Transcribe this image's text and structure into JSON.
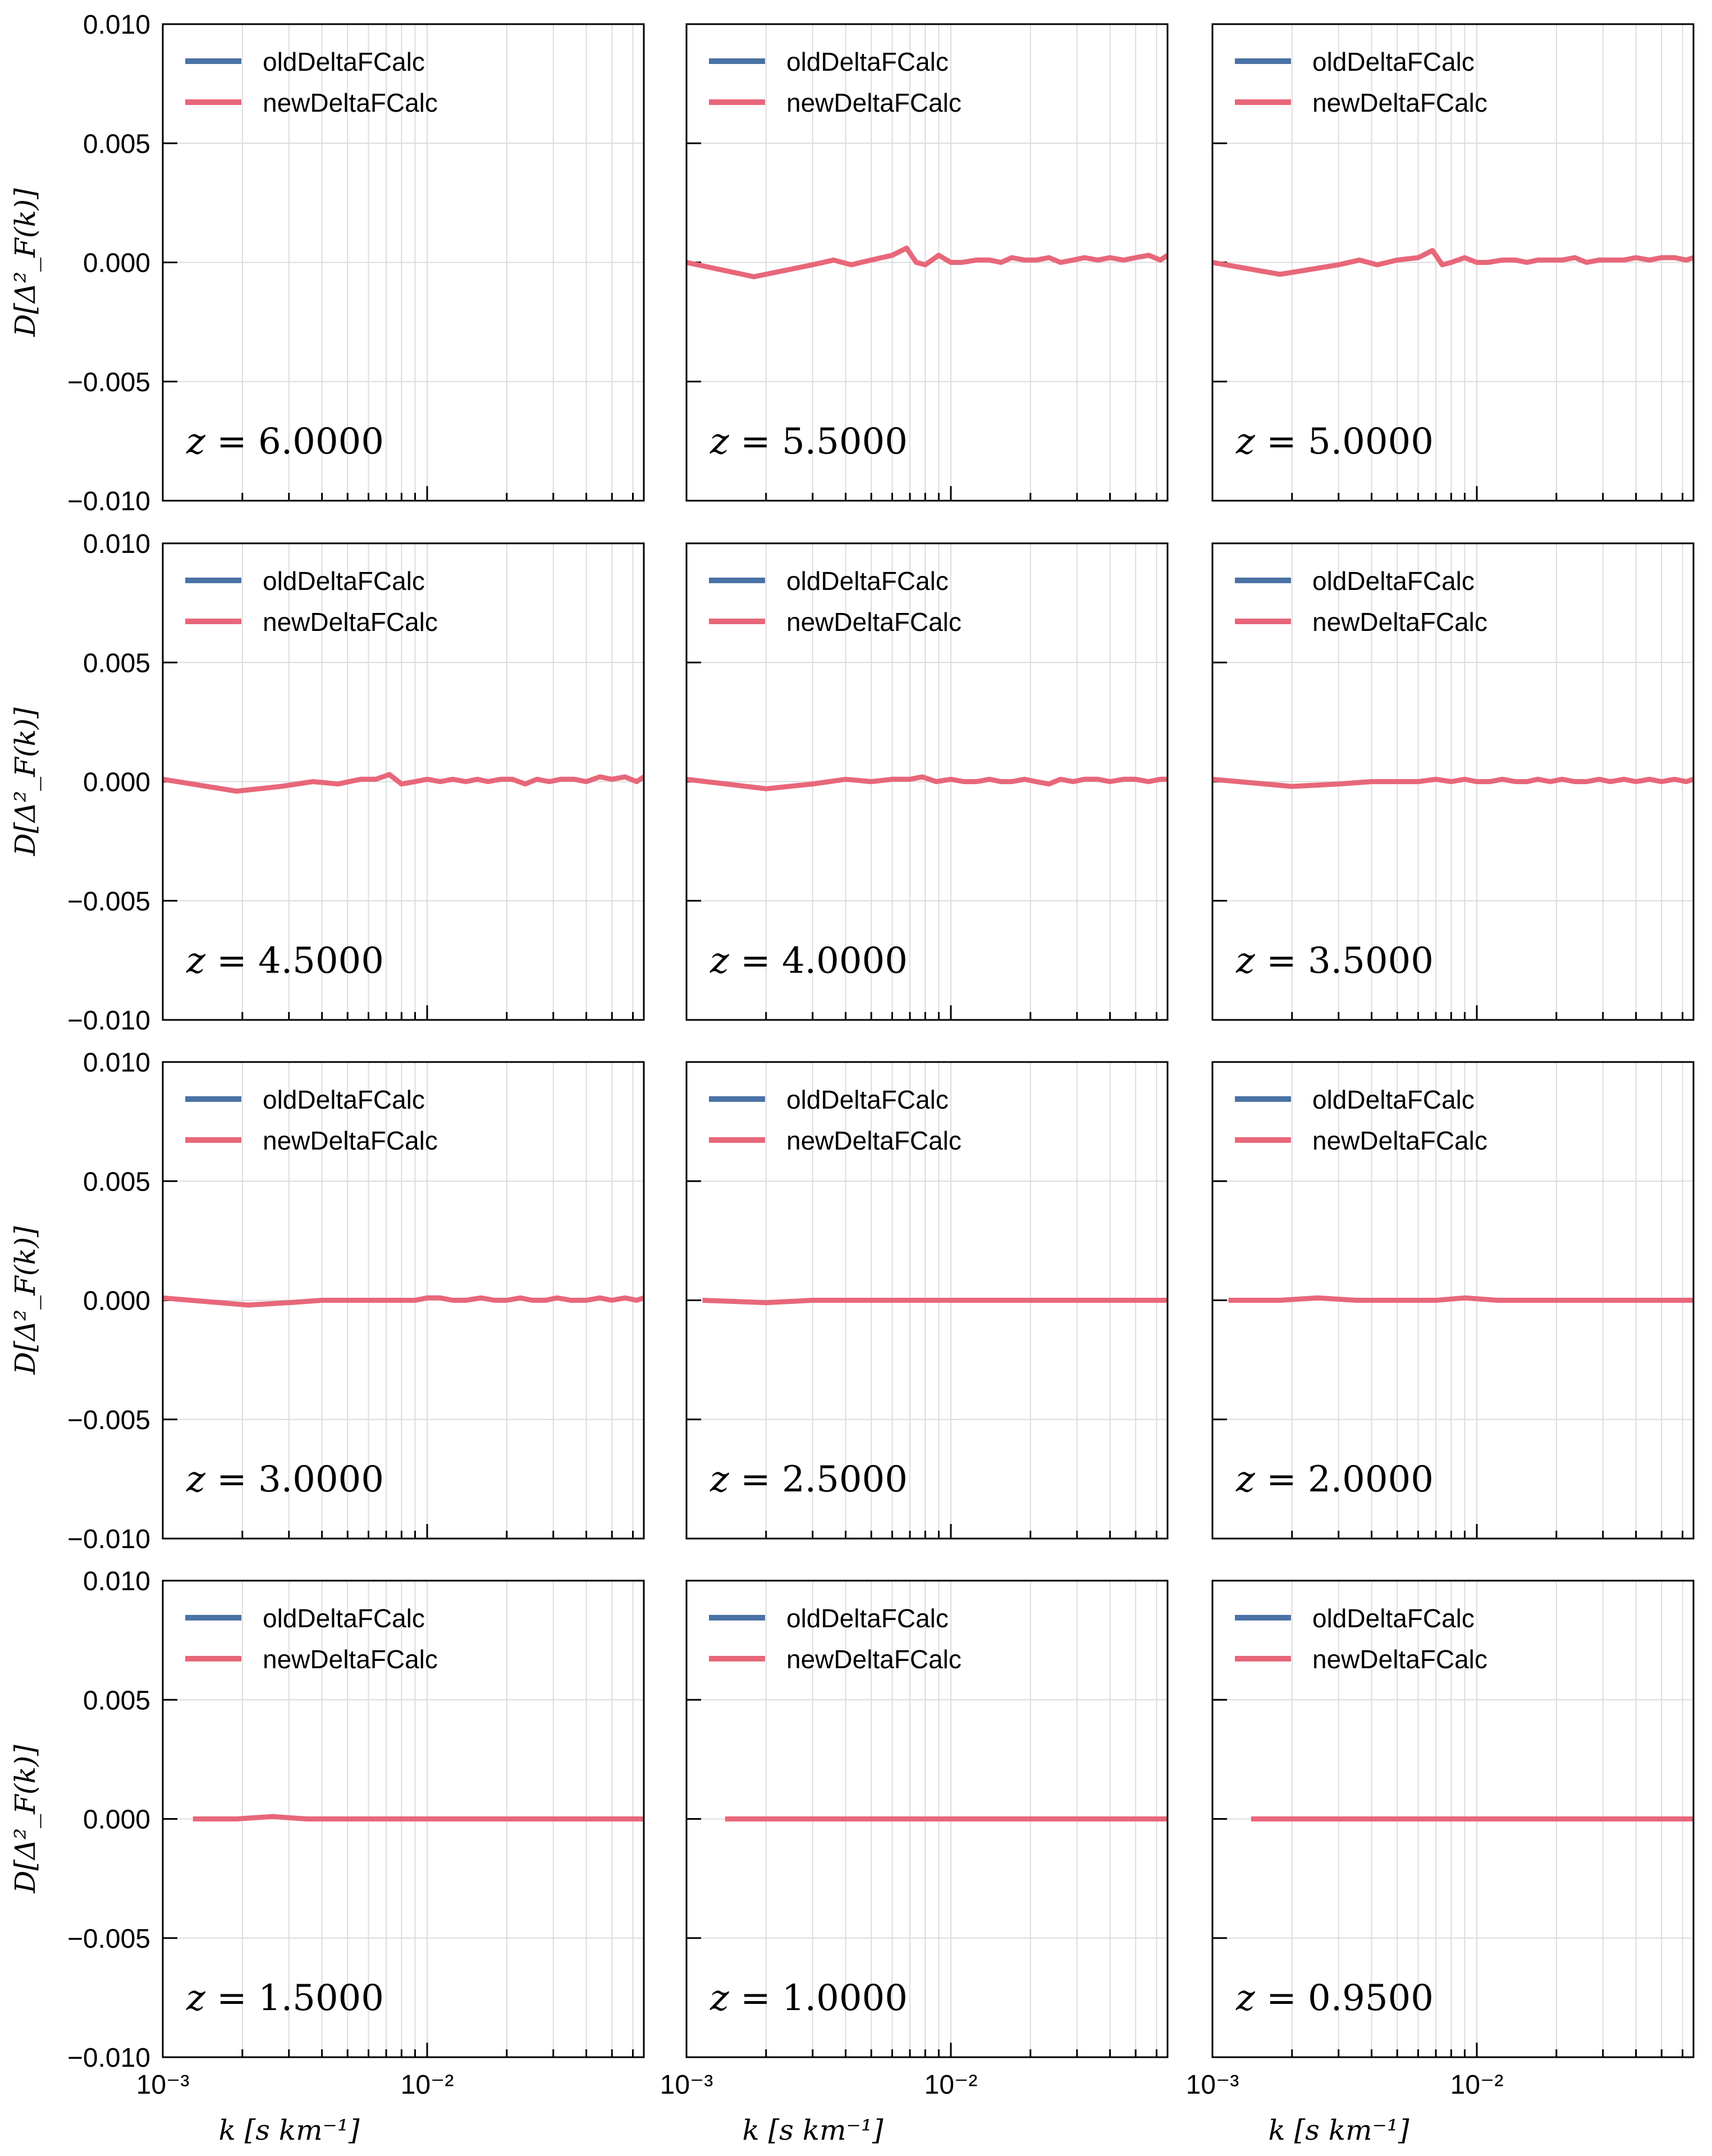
{
  "figure": {
    "legend_labels": [
      "oldDeltaFCalc",
      "newDeltaFCalc"
    ],
    "colors": {
      "old": "#4A72A5",
      "new": "#E8677A",
      "grid": "#DCDCDC"
    },
    "ylabel": "D[Δ²_F(k)]",
    "xlabel": "k [s km⁻¹]",
    "ytick_labels": [
      "0.010",
      "0.005",
      "0.000",
      "−0.005",
      "−0.010"
    ],
    "xtick_labels": [
      "10⁻³",
      "10⁻²"
    ]
  },
  "chart_data": [
    {
      "type": "line",
      "annotation": "z = 6.0000",
      "xscale": "log",
      "xlim": [
        0.001,
        0.066
      ],
      "ylim": [
        -0.01,
        0.01
      ],
      "grid": true,
      "legend": "top-left",
      "series": [
        {
          "name": "oldDeltaFCalc",
          "x": [],
          "y": []
        },
        {
          "name": "newDeltaFCalc",
          "x": [],
          "y": []
        }
      ]
    },
    {
      "type": "line",
      "annotation": "z = 5.5000",
      "xscale": "log",
      "xlim": [
        0.001,
        0.066
      ],
      "ylim": [
        -0.01,
        0.01
      ],
      "grid": true,
      "legend": "top-left",
      "series": [
        {
          "name": "oldDeltaFCalc",
          "x": [],
          "y": []
        },
        {
          "name": "newDeltaFCalc",
          "x": [
            0.001,
            0.0018,
            0.003,
            0.0036,
            0.0042,
            0.005,
            0.006,
            0.0068,
            0.0074,
            0.008,
            0.009,
            0.01,
            0.011,
            0.0125,
            0.014,
            0.0155,
            0.017,
            0.019,
            0.021,
            0.0235,
            0.026,
            0.029,
            0.032,
            0.036,
            0.04,
            0.045,
            0.05,
            0.056,
            0.062,
            0.066
          ],
          "y": [
            0.0,
            -0.0006,
            -0.0001,
            0.0001,
            -0.0001,
            0.0001,
            0.0003,
            0.0006,
            0.0,
            -0.0001,
            0.0003,
            0.0,
            0.0,
            0.0001,
            0.0001,
            0.0,
            0.0002,
            0.0001,
            0.0001,
            0.0002,
            0.0,
            0.0001,
            0.0002,
            0.0001,
            0.0002,
            0.0001,
            0.0002,
            0.0003,
            0.0001,
            0.0003
          ]
        }
      ]
    },
    {
      "type": "line",
      "annotation": "z = 5.0000",
      "xscale": "log",
      "xlim": [
        0.001,
        0.066
      ],
      "ylim": [
        -0.01,
        0.01
      ],
      "grid": true,
      "legend": "top-left",
      "series": [
        {
          "name": "oldDeltaFCalc",
          "x": [],
          "y": []
        },
        {
          "name": "newDeltaFCalc",
          "x": [
            0.001,
            0.0018,
            0.003,
            0.0036,
            0.0042,
            0.005,
            0.006,
            0.0068,
            0.0074,
            0.008,
            0.009,
            0.01,
            0.011,
            0.0125,
            0.014,
            0.0155,
            0.017,
            0.019,
            0.021,
            0.0235,
            0.026,
            0.029,
            0.032,
            0.036,
            0.04,
            0.045,
            0.05,
            0.056,
            0.062,
            0.066
          ],
          "y": [
            0.0,
            -0.0005,
            -0.0001,
            0.0001,
            -0.0001,
            0.0001,
            0.0002,
            0.0005,
            -0.0001,
            0.0,
            0.0002,
            0.0,
            0.0,
            0.0001,
            0.0001,
            0.0,
            0.0001,
            0.0001,
            0.0001,
            0.0002,
            0.0,
            0.0001,
            0.0001,
            0.0001,
            0.0002,
            0.0001,
            0.0002,
            0.0002,
            0.0001,
            0.0002
          ]
        }
      ]
    },
    {
      "type": "line",
      "annotation": "z = 4.5000",
      "xscale": "log",
      "xlim": [
        0.001,
        0.066
      ],
      "ylim": [
        -0.01,
        0.01
      ],
      "grid": true,
      "legend": "top-left",
      "series": [
        {
          "name": "oldDeltaFCalc",
          "x": [],
          "y": []
        },
        {
          "name": "newDeltaFCalc",
          "x": [
            0.001,
            0.0019,
            0.0028,
            0.0037,
            0.0046,
            0.0056,
            0.0064,
            0.0072,
            0.008,
            0.009,
            0.01,
            0.0112,
            0.0125,
            0.014,
            0.0155,
            0.017,
            0.019,
            0.021,
            0.0235,
            0.026,
            0.029,
            0.032,
            0.036,
            0.04,
            0.045,
            0.05,
            0.056,
            0.062,
            0.066
          ],
          "y": [
            0.0001,
            -0.0004,
            -0.0002,
            0.0,
            -0.0001,
            0.0001,
            0.0001,
            0.0003,
            -0.0001,
            0.0,
            0.0001,
            0.0,
            0.0001,
            0.0,
            0.0001,
            0.0,
            0.0001,
            0.0001,
            -0.0001,
            0.0001,
            0.0,
            0.0001,
            0.0001,
            0.0,
            0.0002,
            0.0001,
            0.0002,
            0.0,
            0.0002
          ]
        }
      ]
    },
    {
      "type": "line",
      "annotation": "z = 4.0000",
      "xscale": "log",
      "xlim": [
        0.001,
        0.066
      ],
      "ylim": [
        -0.01,
        0.01
      ],
      "grid": true,
      "legend": "top-left",
      "series": [
        {
          "name": "oldDeltaFCalc",
          "x": [],
          "y": []
        },
        {
          "name": "newDeltaFCalc",
          "x": [
            0.001,
            0.002,
            0.003,
            0.004,
            0.005,
            0.006,
            0.007,
            0.0078,
            0.0088,
            0.01,
            0.0112,
            0.0125,
            0.014,
            0.0155,
            0.017,
            0.019,
            0.021,
            0.0235,
            0.026,
            0.029,
            0.032,
            0.036,
            0.04,
            0.045,
            0.05,
            0.056,
            0.062,
            0.066
          ],
          "y": [
            0.0001,
            -0.0003,
            -0.0001,
            0.0001,
            0.0,
            0.0001,
            0.0001,
            0.0002,
            0.0,
            0.0001,
            0.0,
            0.0,
            0.0001,
            0.0,
            0.0,
            0.0001,
            0.0,
            -0.0001,
            0.0001,
            0.0,
            0.0001,
            0.0001,
            0.0,
            0.0001,
            0.0001,
            0.0,
            0.0001,
            0.0001
          ]
        }
      ]
    },
    {
      "type": "line",
      "annotation": "z = 3.5000",
      "xscale": "log",
      "xlim": [
        0.001,
        0.066
      ],
      "ylim": [
        -0.01,
        0.01
      ],
      "grid": true,
      "legend": "top-left",
      "series": [
        {
          "name": "oldDeltaFCalc",
          "x": [],
          "y": []
        },
        {
          "name": "newDeltaFCalc",
          "x": [
            0.001,
            0.002,
            0.003,
            0.004,
            0.005,
            0.006,
            0.007,
            0.008,
            0.009,
            0.01,
            0.0112,
            0.0125,
            0.014,
            0.0155,
            0.017,
            0.019,
            0.021,
            0.0235,
            0.026,
            0.029,
            0.032,
            0.036,
            0.04,
            0.045,
            0.05,
            0.056,
            0.062,
            0.066
          ],
          "y": [
            0.0001,
            -0.0002,
            -0.0001,
            0.0,
            0.0,
            0.0,
            0.0001,
            0.0,
            0.0001,
            0.0,
            0.0,
            0.0001,
            0.0,
            0.0,
            0.0001,
            0.0,
            0.0001,
            0.0,
            0.0,
            0.0001,
            0.0,
            0.0001,
            0.0,
            0.0001,
            0.0,
            0.0001,
            0.0,
            0.0001
          ]
        }
      ]
    },
    {
      "type": "line",
      "annotation": "z = 3.0000",
      "xscale": "log",
      "xlim": [
        0.001,
        0.066
      ],
      "ylim": [
        -0.01,
        0.01
      ],
      "grid": true,
      "legend": "top-left",
      "series": [
        {
          "name": "oldDeltaFCalc",
          "x": [],
          "y": []
        },
        {
          "name": "newDeltaFCalc",
          "x": [
            0.001,
            0.0021,
            0.003,
            0.004,
            0.005,
            0.006,
            0.0075,
            0.009,
            0.01,
            0.0112,
            0.0125,
            0.014,
            0.016,
            0.018,
            0.02,
            0.0225,
            0.025,
            0.028,
            0.031,
            0.035,
            0.04,
            0.045,
            0.05,
            0.056,
            0.062,
            0.066
          ],
          "y": [
            0.0001,
            -0.0002,
            -0.0001,
            0.0,
            0.0,
            0.0,
            0.0,
            0.0,
            0.0001,
            0.0001,
            0.0,
            0.0,
            0.0001,
            0.0,
            0.0,
            0.0001,
            0.0,
            0.0,
            0.0001,
            0.0,
            0.0,
            0.0001,
            0.0,
            0.0001,
            0.0,
            0.0001
          ]
        }
      ]
    },
    {
      "type": "line",
      "annotation": "z = 2.5000",
      "xscale": "log",
      "xlim": [
        0.001,
        0.066
      ],
      "ylim": [
        -0.01,
        0.01
      ],
      "grid": true,
      "legend": "top-left",
      "series": [
        {
          "name": "oldDeltaFCalc",
          "x": [],
          "y": []
        },
        {
          "name": "newDeltaFCalc",
          "x": [
            0.00115,
            0.002,
            0.003,
            0.0045,
            0.006,
            0.008,
            0.01,
            0.013,
            0.017,
            0.022,
            0.03,
            0.04,
            0.05,
            0.066
          ],
          "y": [
            0.0,
            -0.0001,
            0.0,
            0.0,
            0.0,
            0.0,
            0.0,
            0.0,
            0.0,
            0.0,
            0.0,
            0.0,
            0.0,
            0.0
          ]
        }
      ]
    },
    {
      "type": "line",
      "annotation": "z = 2.0000",
      "xscale": "log",
      "xlim": [
        0.001,
        0.066
      ],
      "ylim": [
        -0.01,
        0.01
      ],
      "grid": true,
      "legend": "top-left",
      "series": [
        {
          "name": "oldDeltaFCalc",
          "x": [],
          "y": []
        },
        {
          "name": "newDeltaFCalc",
          "x": [
            0.00115,
            0.0018,
            0.0025,
            0.0035,
            0.005,
            0.007,
            0.009,
            0.012,
            0.016,
            0.022,
            0.03,
            0.04,
            0.05,
            0.066
          ],
          "y": [
            0.0,
            0.0,
            0.0001,
            0.0,
            0.0,
            0.0,
            0.0001,
            0.0,
            0.0,
            0.0,
            0.0,
            0.0,
            0.0,
            0.0
          ]
        }
      ]
    },
    {
      "type": "line",
      "annotation": "z = 1.5000",
      "xscale": "log",
      "xlim": [
        0.001,
        0.066
      ],
      "ylim": [
        -0.01,
        0.01
      ],
      "grid": true,
      "legend": "top-left",
      "series": [
        {
          "name": "oldDeltaFCalc",
          "x": [],
          "y": []
        },
        {
          "name": "newDeltaFCalc",
          "x": [
            0.0013,
            0.0019,
            0.0026,
            0.0035,
            0.005,
            0.007,
            0.01,
            0.014,
            0.02,
            0.03,
            0.045,
            0.066
          ],
          "y": [
            0.0,
            0.0,
            0.0001,
            0.0,
            0.0,
            0.0,
            0.0,
            0.0,
            0.0,
            0.0,
            0.0,
            0.0
          ]
        }
      ]
    },
    {
      "type": "line",
      "annotation": "z = 1.0000",
      "xscale": "log",
      "xlim": [
        0.001,
        0.066
      ],
      "ylim": [
        -0.01,
        0.01
      ],
      "grid": true,
      "legend": "top-left",
      "series": [
        {
          "name": "oldDeltaFCalc",
          "x": [],
          "y": []
        },
        {
          "name": "newDeltaFCalc",
          "x": [
            0.0014,
            0.002,
            0.003,
            0.0045,
            0.007,
            0.01,
            0.015,
            0.022,
            0.032,
            0.045,
            0.066
          ],
          "y": [
            0.0,
            0.0,
            0.0,
            0.0,
            0.0,
            0.0,
            0.0,
            0.0,
            0.0,
            0.0,
            0.0
          ]
        }
      ]
    },
    {
      "type": "line",
      "annotation": "z = 0.9500",
      "xscale": "log",
      "xlim": [
        0.001,
        0.066
      ],
      "ylim": [
        -0.01,
        0.01
      ],
      "grid": true,
      "legend": "top-left",
      "series": [
        {
          "name": "oldDeltaFCalc",
          "x": [],
          "y": []
        },
        {
          "name": "newDeltaFCalc",
          "x": [
            0.0014,
            0.002,
            0.003,
            0.0045,
            0.007,
            0.01,
            0.015,
            0.022,
            0.032,
            0.045,
            0.066
          ],
          "y": [
            0.0,
            0.0,
            0.0,
            0.0,
            0.0,
            0.0,
            0.0,
            0.0,
            0.0,
            0.0,
            0.0
          ]
        }
      ]
    }
  ]
}
